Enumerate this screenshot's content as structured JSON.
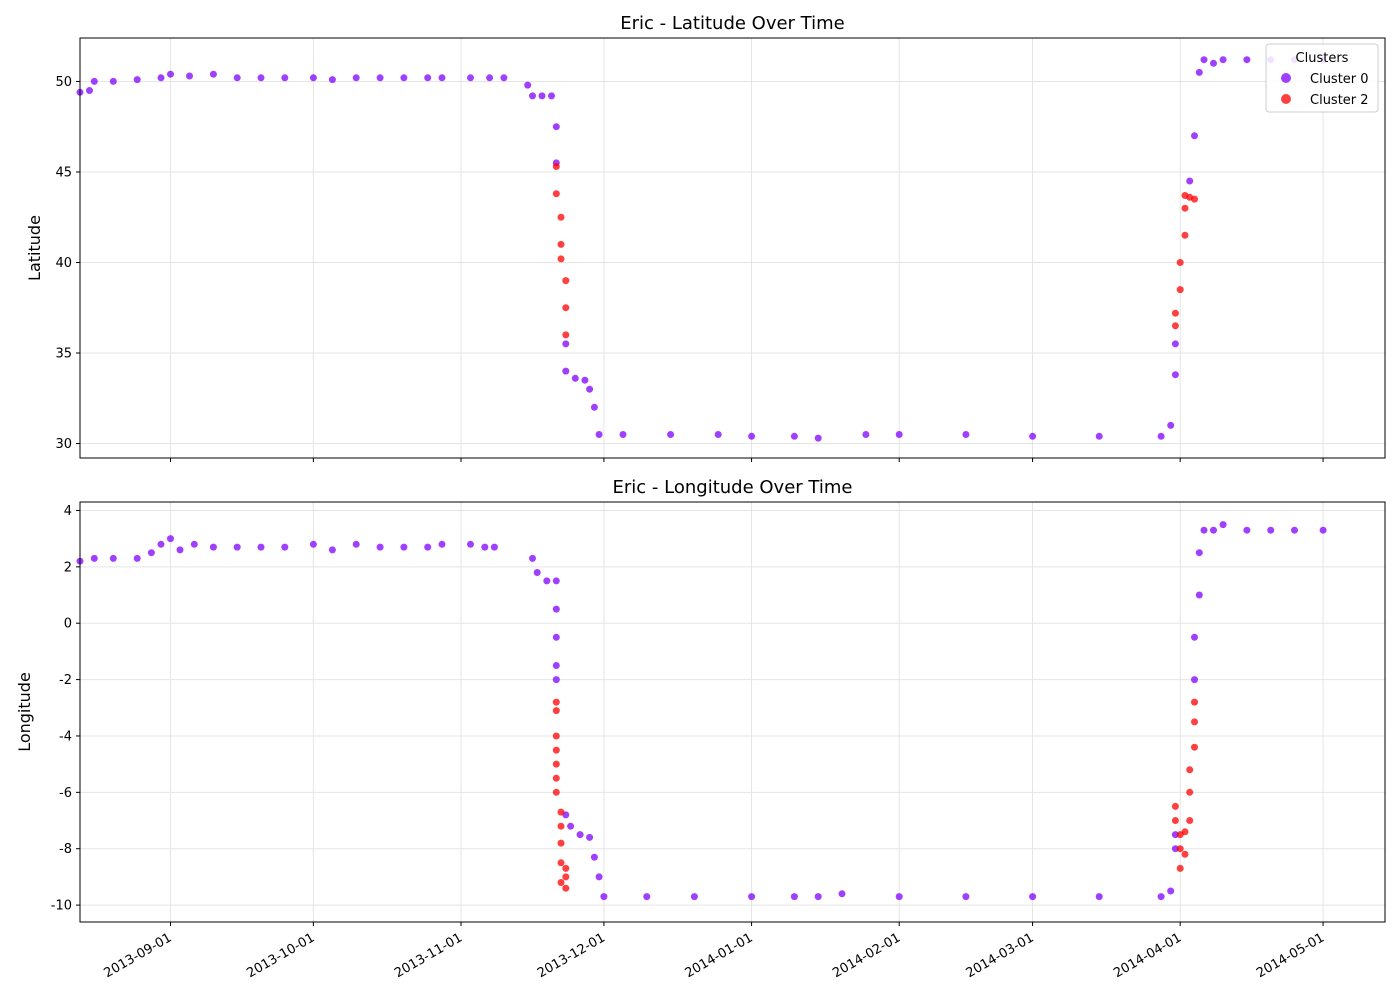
{
  "chart_data": [
    {
      "type": "scatter",
      "title": "Eric - Latitude Over Time",
      "ylabel": "Latitude",
      "xlabel": "",
      "xlim": [
        "2013-08-13",
        "2014-05-14"
      ],
      "ylim": [
        29.2,
        52.4
      ],
      "yticks": [
        30,
        35,
        40,
        45,
        50
      ],
      "xticks": [
        "2013-09-01",
        "2013-10-01",
        "2013-11-01",
        "2013-12-01",
        "2014-01-01",
        "2014-02-01",
        "2014-03-01",
        "2014-04-01",
        "2014-05-01"
      ],
      "grid": true,
      "legend": {
        "title": "Clusters",
        "placement": "top-right",
        "entries": [
          "Cluster 0",
          "Cluster 2"
        ]
      },
      "colors": {
        "Cluster 0": "#8000ff",
        "Cluster 2": "#ff0000"
      },
      "series": [
        {
          "name": "Cluster 0",
          "points": [
            [
              "2013-08-13",
              49.4
            ],
            [
              "2013-08-15",
              49.5
            ],
            [
              "2013-08-16",
              50.0
            ],
            [
              "2013-08-20",
              50.0
            ],
            [
              "2013-08-25",
              50.1
            ],
            [
              "2013-08-30",
              50.2
            ],
            [
              "2013-09-01",
              50.4
            ],
            [
              "2013-09-05",
              50.3
            ],
            [
              "2013-09-10",
              50.4
            ],
            [
              "2013-09-15",
              50.2
            ],
            [
              "2013-09-20",
              50.2
            ],
            [
              "2013-09-25",
              50.2
            ],
            [
              "2013-10-01",
              50.2
            ],
            [
              "2013-10-05",
              50.1
            ],
            [
              "2013-10-10",
              50.2
            ],
            [
              "2013-10-15",
              50.2
            ],
            [
              "2013-10-20",
              50.2
            ],
            [
              "2013-10-25",
              50.2
            ],
            [
              "2013-10-28",
              50.2
            ],
            [
              "2013-11-03",
              50.2
            ],
            [
              "2013-11-07",
              50.2
            ],
            [
              "2013-11-10",
              50.2
            ],
            [
              "2013-11-15",
              49.8
            ],
            [
              "2013-11-16",
              49.2
            ],
            [
              "2013-11-18",
              49.2
            ],
            [
              "2013-11-20",
              49.2
            ],
            [
              "2013-11-21",
              47.5
            ],
            [
              "2013-11-21",
              45.5
            ],
            [
              "2013-11-23",
              35.5
            ],
            [
              "2013-11-23",
              34.0
            ],
            [
              "2013-11-25",
              33.6
            ],
            [
              "2013-11-27",
              33.5
            ],
            [
              "2013-11-28",
              33.0
            ],
            [
              "2013-11-29",
              32.0
            ],
            [
              "2013-11-30",
              30.5
            ],
            [
              "2013-12-05",
              30.5
            ],
            [
              "2013-12-15",
              30.5
            ],
            [
              "2013-12-25",
              30.5
            ],
            [
              "2014-01-01",
              30.4
            ],
            [
              "2014-01-10",
              30.4
            ],
            [
              "2014-01-15",
              30.3
            ],
            [
              "2014-01-25",
              30.5
            ],
            [
              "2014-02-01",
              30.5
            ],
            [
              "2014-02-15",
              30.5
            ],
            [
              "2014-03-01",
              30.4
            ],
            [
              "2014-03-15",
              30.4
            ],
            [
              "2014-03-28",
              30.4
            ],
            [
              "2014-03-30",
              31.0
            ],
            [
              "2014-03-31",
              33.8
            ],
            [
              "2014-03-31",
              35.5
            ],
            [
              "2014-04-03",
              44.5
            ],
            [
              "2014-04-04",
              47.0
            ],
            [
              "2014-04-05",
              50.5
            ],
            [
              "2014-04-06",
              51.2
            ],
            [
              "2014-04-08",
              51.0
            ],
            [
              "2014-04-10",
              51.2
            ],
            [
              "2014-04-15",
              51.2
            ],
            [
              "2014-04-20",
              51.2
            ],
            [
              "2014-04-25",
              51.2
            ],
            [
              "2014-05-01",
              51.2
            ]
          ]
        },
        {
          "name": "Cluster 2",
          "points": [
            [
              "2013-11-21",
              45.3
            ],
            [
              "2013-11-21",
              43.8
            ],
            [
              "2013-11-22",
              42.5
            ],
            [
              "2013-11-22",
              41.0
            ],
            [
              "2013-11-22",
              40.2
            ],
            [
              "2013-11-23",
              39.0
            ],
            [
              "2013-11-23",
              37.5
            ],
            [
              "2013-11-23",
              36.0
            ],
            [
              "2014-03-31",
              36.5
            ],
            [
              "2014-03-31",
              37.2
            ],
            [
              "2014-04-01",
              38.5
            ],
            [
              "2014-04-01",
              40.0
            ],
            [
              "2014-04-02",
              41.5
            ],
            [
              "2014-04-02",
              43.0
            ],
            [
              "2014-04-02",
              43.7
            ],
            [
              "2014-04-03",
              43.6
            ],
            [
              "2014-04-04",
              43.5
            ]
          ]
        }
      ]
    },
    {
      "type": "scatter",
      "title": "Eric - Longitude Over Time",
      "ylabel": "Longitude",
      "xlabel": "",
      "xlim": [
        "2013-08-13",
        "2014-05-14"
      ],
      "ylim": [
        -10.6,
        4.3
      ],
      "yticks": [
        4,
        2,
        0,
        -2,
        -4,
        -6,
        -8,
        -10
      ],
      "xticks": [
        "2013-09-01",
        "2013-10-01",
        "2013-11-01",
        "2013-12-01",
        "2014-01-01",
        "2014-02-01",
        "2014-03-01",
        "2014-04-01",
        "2014-05-01"
      ],
      "grid": true,
      "colors": {
        "Cluster 0": "#8000ff",
        "Cluster 2": "#ff0000"
      },
      "series": [
        {
          "name": "Cluster 0",
          "points": [
            [
              "2013-08-13",
              2.2
            ],
            [
              "2013-08-16",
              2.3
            ],
            [
              "2013-08-20",
              2.3
            ],
            [
              "2013-08-25",
              2.3
            ],
            [
              "2013-08-28",
              2.5
            ],
            [
              "2013-08-30",
              2.8
            ],
            [
              "2013-09-01",
              3.0
            ],
            [
              "2013-09-03",
              2.6
            ],
            [
              "2013-09-06",
              2.8
            ],
            [
              "2013-09-10",
              2.7
            ],
            [
              "2013-09-15",
              2.7
            ],
            [
              "2013-09-20",
              2.7
            ],
            [
              "2013-09-25",
              2.7
            ],
            [
              "2013-10-01",
              2.8
            ],
            [
              "2013-10-05",
              2.6
            ],
            [
              "2013-10-10",
              2.8
            ],
            [
              "2013-10-15",
              2.7
            ],
            [
              "2013-10-20",
              2.7
            ],
            [
              "2013-10-25",
              2.7
            ],
            [
              "2013-10-28",
              2.8
            ],
            [
              "2013-11-03",
              2.8
            ],
            [
              "2013-11-06",
              2.7
            ],
            [
              "2013-11-08",
              2.7
            ],
            [
              "2013-11-16",
              2.3
            ],
            [
              "2013-11-17",
              1.8
            ],
            [
              "2013-11-19",
              1.5
            ],
            [
              "2013-11-21",
              1.5
            ],
            [
              "2013-11-21",
              0.5
            ],
            [
              "2013-11-21",
              -0.5
            ],
            [
              "2013-11-21",
              -1.5
            ],
            [
              "2013-11-21",
              -2.0
            ],
            [
              "2013-11-23",
              -6.8
            ],
            [
              "2013-11-24",
              -7.2
            ],
            [
              "2013-11-26",
              -7.5
            ],
            [
              "2013-11-28",
              -7.6
            ],
            [
              "2013-11-29",
              -8.3
            ],
            [
              "2013-11-30",
              -9.0
            ],
            [
              "2013-12-01",
              -9.7
            ],
            [
              "2013-12-10",
              -9.7
            ],
            [
              "2013-12-20",
              -9.7
            ],
            [
              "2014-01-01",
              -9.7
            ],
            [
              "2014-01-10",
              -9.7
            ],
            [
              "2014-01-15",
              -9.7
            ],
            [
              "2014-01-20",
              -9.6
            ],
            [
              "2014-02-01",
              -9.7
            ],
            [
              "2014-02-15",
              -9.7
            ],
            [
              "2014-03-01",
              -9.7
            ],
            [
              "2014-03-15",
              -9.7
            ],
            [
              "2014-03-28",
              -9.7
            ],
            [
              "2014-03-30",
              -9.5
            ],
            [
              "2014-03-31",
              -8.0
            ],
            [
              "2014-03-31",
              -7.5
            ],
            [
              "2014-04-04",
              -2.0
            ],
            [
              "2014-04-04",
              -0.5
            ],
            [
              "2014-04-05",
              1.0
            ],
            [
              "2014-04-05",
              2.5
            ],
            [
              "2014-04-06",
              3.3
            ],
            [
              "2014-04-08",
              3.3
            ],
            [
              "2014-04-10",
              3.5
            ],
            [
              "2014-04-15",
              3.3
            ],
            [
              "2014-04-20",
              3.3
            ],
            [
              "2014-04-25",
              3.3
            ],
            [
              "2014-05-01",
              3.3
            ]
          ]
        },
        {
          "name": "Cluster 2",
          "points": [
            [
              "2013-11-21",
              -2.8
            ],
            [
              "2013-11-21",
              -3.1
            ],
            [
              "2013-11-21",
              -4.0
            ],
            [
              "2013-11-21",
              -4.5
            ],
            [
              "2013-11-21",
              -5.0
            ],
            [
              "2013-11-21",
              -5.5
            ],
            [
              "2013-11-21",
              -6.0
            ],
            [
              "2013-11-22",
              -6.7
            ],
            [
              "2013-11-22",
              -7.2
            ],
            [
              "2013-11-22",
              -7.8
            ],
            [
              "2013-11-22",
              -8.5
            ],
            [
              "2013-11-22",
              -9.2
            ],
            [
              "2013-11-23",
              -9.0
            ],
            [
              "2013-11-23",
              -8.7
            ],
            [
              "2013-11-23",
              -9.4
            ],
            [
              "2014-03-31",
              -6.5
            ],
            [
              "2014-03-31",
              -7.0
            ],
            [
              "2014-04-01",
              -7.5
            ],
            [
              "2014-04-01",
              -8.0
            ],
            [
              "2014-04-01",
              -8.7
            ],
            [
              "2014-04-02",
              -8.2
            ],
            [
              "2014-04-02",
              -7.4
            ],
            [
              "2014-04-03",
              -7.0
            ],
            [
              "2014-04-03",
              -6.0
            ],
            [
              "2014-04-03",
              -5.2
            ],
            [
              "2014-04-04",
              -4.4
            ],
            [
              "2014-04-04",
              -3.5
            ],
            [
              "2014-04-04",
              -2.8
            ]
          ]
        }
      ]
    }
  ]
}
